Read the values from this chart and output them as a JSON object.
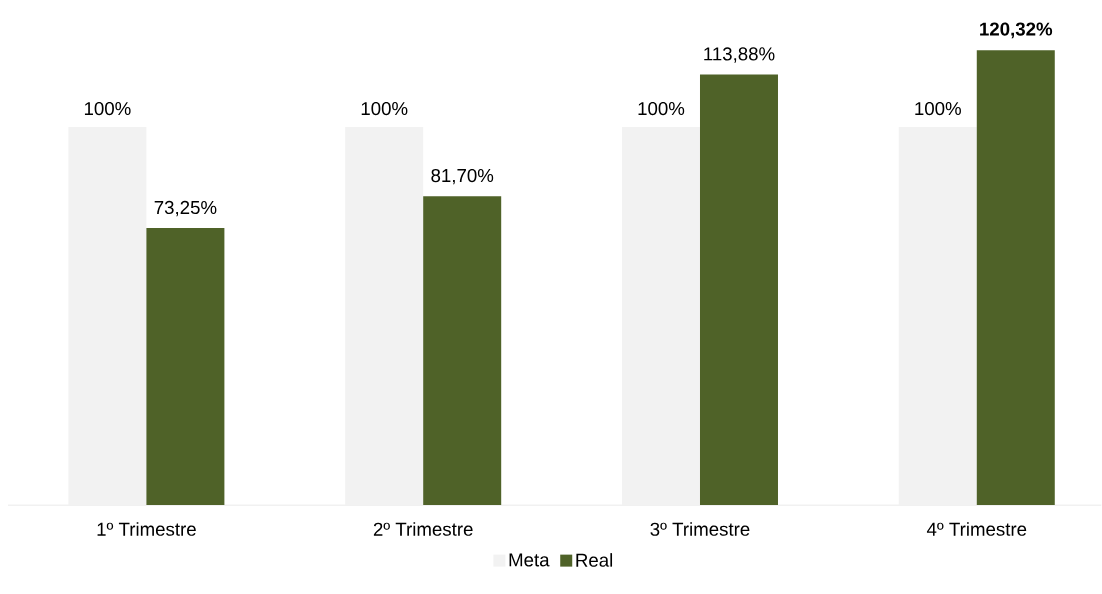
{
  "chart_data": {
    "type": "bar",
    "categories": [
      "1º Trimestre",
      "2º Trimestre",
      "3º Trimestre",
      "4º Trimestre"
    ],
    "series": [
      {
        "name": "Meta",
        "color": "#f2f2f2",
        "values": [
          100,
          100,
          100,
          100
        ],
        "value_labels": [
          "100%",
          "100%",
          "100%",
          "100%"
        ]
      },
      {
        "name": "Real",
        "color": "#4f6228",
        "values": [
          73.25,
          81.7,
          113.88,
          120.32
        ],
        "value_labels": [
          "73,25%",
          "81,70%",
          "113,88%",
          "**120,32%**"
        ]
      }
    ],
    "legend": "bottom"
  }
}
